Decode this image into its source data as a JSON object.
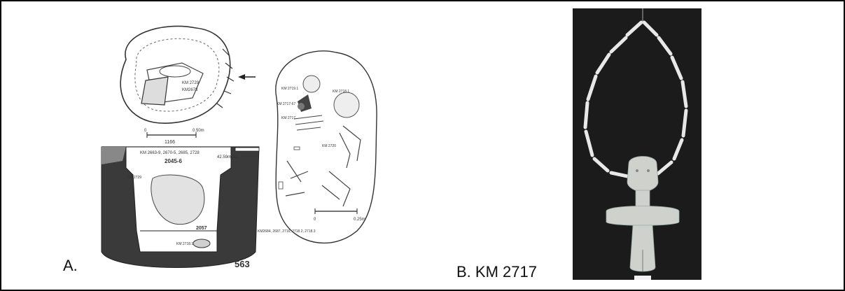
{
  "panel_a": {
    "caption": "A.",
    "figure_number": "563",
    "plan_scale_label": "0.50m",
    "plan_scale_zero": "0",
    "section_number": "1166",
    "section_label_top": "KM 2663-9, 2670-5, 2685, 2728",
    "section_level": "42.59m asl",
    "layer_upper": "2045-6",
    "layer_lower": "2057",
    "label_km2729": "KM 2729",
    "label_km27181": "KM 2718.1",
    "label_bottom_right": "KM2684, 2687, 2716, 2718.2, 2718.3",
    "plan_label_1": "KM 2729",
    "plan_label_2": "KM2678",
    "burial_label_1": "KM 2719.1",
    "burial_label_2": "KM 2718.1",
    "burial_label_3": "KM 2717-67",
    "burial_label_4": "KM 2717",
    "burial_label_5": "KM 2720",
    "burial_scale_zero": "0",
    "burial_scale_label": "0.25m"
  },
  "panel_b": {
    "caption": "B. KM 2717"
  }
}
